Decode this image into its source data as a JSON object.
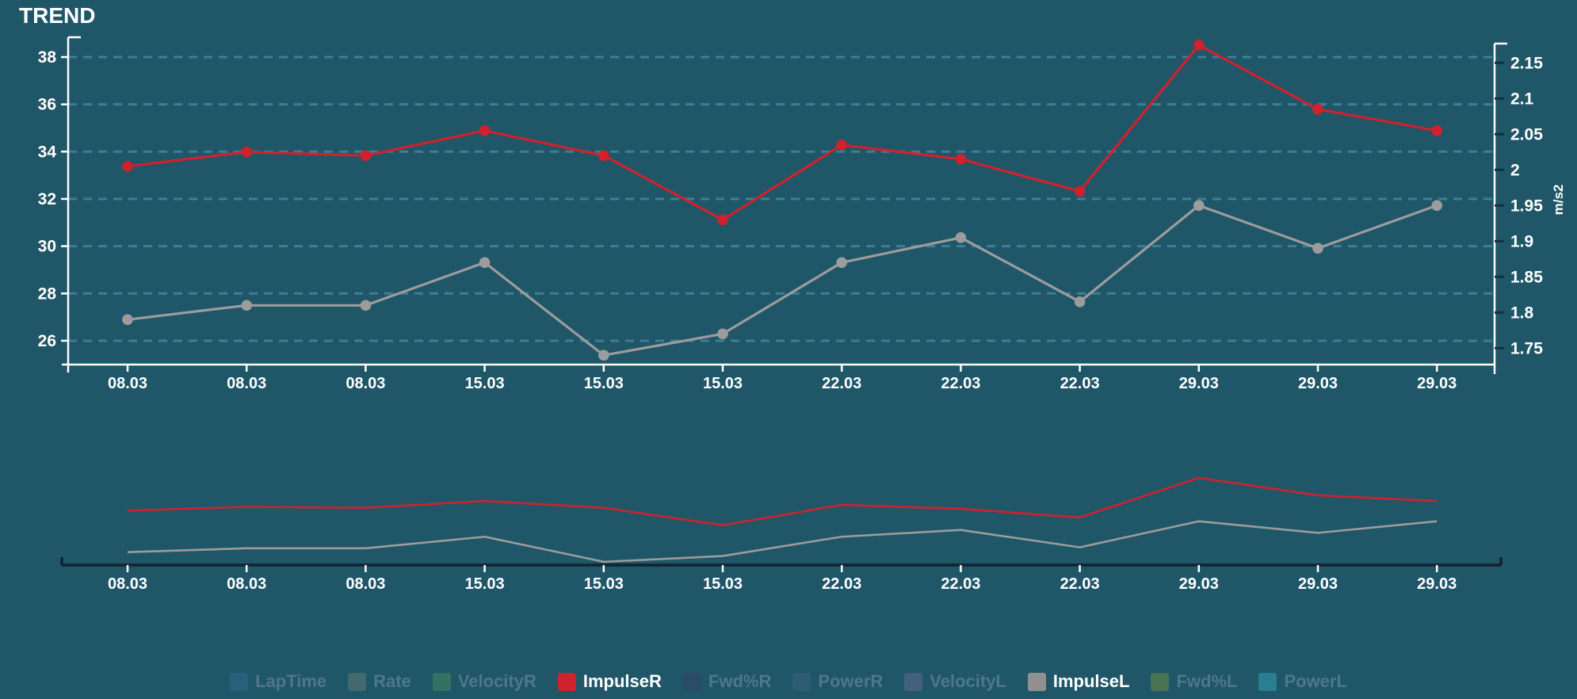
{
  "title": "TREND",
  "colors": {
    "background": "#1F5668",
    "gridline": "#3E7E96",
    "axis_line": "#FFFFFF",
    "right_axis_tick": "#16313D",
    "navigator_axis": "#0F2430",
    "axis_text": "#FFFFFF",
    "legend_text_dimmed": "#4E7887",
    "impulse_r": "#D0212D",
    "impulse_l": "#9C9C9C"
  },
  "chart_data": {
    "type": "line",
    "title": "TREND",
    "categories": [
      "08.03",
      "08.03",
      "08.03",
      "15.03",
      "15.03",
      "15.03",
      "22.03",
      "22.03",
      "22.03",
      "29.03",
      "29.03",
      "29.03"
    ],
    "series": [
      {
        "name": "ImpulseL",
        "color": "#9C9C9C",
        "unit": "m/s2",
        "values": [
          1.79,
          1.81,
          1.81,
          1.87,
          1.74,
          1.77,
          1.87,
          1.905,
          1.815,
          1.95,
          1.89,
          1.95
        ]
      },
      {
        "name": "ImpulseR",
        "color": "#D0212D",
        "unit": "m/s2",
        "values": [
          2.005,
          2.025,
          2.02,
          2.055,
          2.02,
          1.93,
          2.035,
          2.015,
          1.97,
          2.175,
          2.085,
          2.055
        ]
      }
    ],
    "y_axis_left": {
      "ticks": [
        38,
        36,
        34,
        32,
        30,
        28,
        26
      ],
      "min": 25,
      "max": 38.85
    },
    "y_axis_right": {
      "ticks": [
        2.15,
        2.1,
        2.05,
        2,
        1.95,
        1.9,
        1.85,
        1.8,
        1.75
      ],
      "title": "m/s2",
      "min": 1.73,
      "max": 2.185
    },
    "grid": "horizontal dashed",
    "legend_position": "bottom",
    "navigator": {
      "present": true,
      "categories": [
        "08.03",
        "08.03",
        "08.03",
        "15.03",
        "15.03",
        "15.03",
        "22.03",
        "22.03",
        "22.03",
        "29.03",
        "29.03",
        "29.03"
      ]
    }
  },
  "legend": {
    "items": [
      {
        "label": "LapTime",
        "color": "#28607C",
        "active": false
      },
      {
        "label": "Rate",
        "color": "#41696E",
        "active": false
      },
      {
        "label": "VelocityR",
        "color": "#357161",
        "active": false
      },
      {
        "label": "ImpulseR",
        "color": "#D0212D",
        "active": true
      },
      {
        "label": "Fwd%R",
        "color": "#2B4C69",
        "active": false
      },
      {
        "label": "PowerR",
        "color": "#2D5D74",
        "active": false
      },
      {
        "label": "VelocityL",
        "color": "#42607E",
        "active": false
      },
      {
        "label": "ImpulseL",
        "color": "#909090",
        "active": true
      },
      {
        "label": "Fwd%L",
        "color": "#4A7254",
        "active": false
      },
      {
        "label": "PowerL",
        "color": "#2A7E91",
        "active": false
      }
    ]
  }
}
